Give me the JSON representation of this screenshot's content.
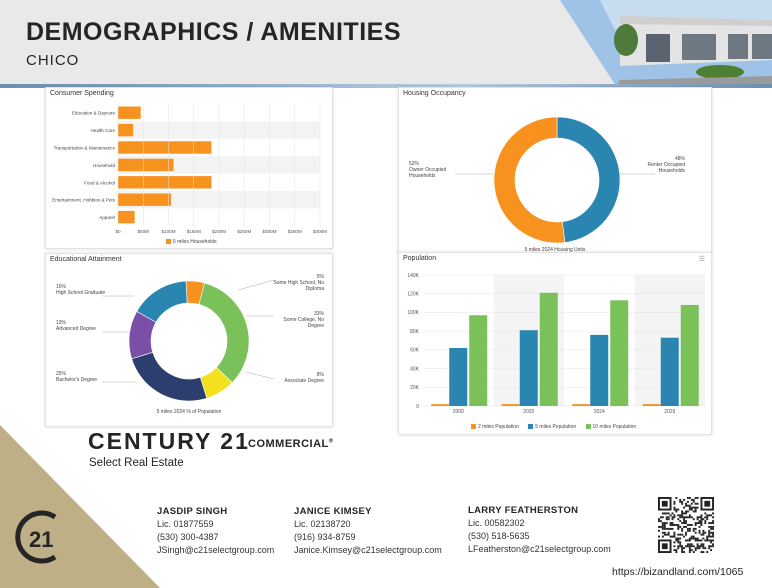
{
  "header": {
    "title": "DEMOGRAPHICS / AMENITIES",
    "subtitle": "CHICO"
  },
  "colors": {
    "orange": "#f7921e",
    "blue": "#2a86b0",
    "green": "#7bc15a",
    "purple": "#7b4ea7",
    "navy": "#2c3e6e",
    "yellow": "#f3e01f",
    "gold": "#beaf87"
  },
  "consumer": {
    "title": "Consumer Spending",
    "chart_data": {
      "type": "bar",
      "orientation": "horizontal",
      "categories": [
        "Education & Daycare",
        "Health Care",
        "Transportation & Maintenance",
        "Household",
        "Food & Alcohol",
        "Entertainment, Hobbies & Pets",
        "Apparel"
      ],
      "values": [
        45,
        30,
        185,
        110,
        185,
        105,
        33
      ],
      "xticks": [
        "$0",
        "$50M",
        "$100M",
        "$150M",
        "$200M",
        "$250M",
        "$300M",
        "$350M",
        "$400M"
      ],
      "xlim": [
        0,
        400
      ],
      "legend": "5 miles Households"
    }
  },
  "housing": {
    "title": "Housing Occupancy",
    "chart_data": {
      "type": "pie",
      "donut": true,
      "labels": [
        "Owner Occupied Households",
        "Renter Occupied Households"
      ],
      "values": [
        52,
        48
      ],
      "label_pct": [
        "52%",
        "48%"
      ],
      "footer": "5 miles 2024 Housing Units"
    }
  },
  "education": {
    "title": "Educational Attainment",
    "chart_data": {
      "type": "pie",
      "donut": true,
      "labels": [
        "Some High School, No Diploma",
        "Some College, No Degree",
        "Associate Degree",
        "Bachelor's Degree",
        "Advanced Degree",
        "High School Graduate"
      ],
      "values": [
        5,
        33,
        8,
        25,
        13,
        16
      ],
      "label_pct": [
        "5%",
        "33%",
        "8%",
        "25%",
        "13%",
        "16%"
      ],
      "footer": "5 miles 2024 % of Population"
    }
  },
  "population": {
    "title": "Population",
    "chart_data": {
      "type": "bar",
      "categories": [
        "2000",
        "2020",
        "2024",
        "2029"
      ],
      "series": [
        {
          "name": "2 miles Population",
          "values": [
            2000,
            2000,
            2000,
            2000
          ]
        },
        {
          "name": "5 miles Population",
          "values": [
            62000,
            81000,
            76000,
            73000
          ]
        },
        {
          "name": "10 miles Population",
          "values": [
            97000,
            121000,
            113000,
            108000
          ]
        }
      ],
      "yticks": [
        "0",
        "20K",
        "40K",
        "60K",
        "80K",
        "100K",
        "120K",
        "140K"
      ],
      "ylim": [
        0,
        140000
      ]
    }
  },
  "brand": {
    "name": "CENTURY 21",
    "commercial": "COMMERCIAL",
    "reg": "®",
    "office": "Select Real Estate"
  },
  "agents": [
    {
      "name": "JASDIP SINGH",
      "lic": "Lic. 01877559",
      "phone": "(530) 300-4387",
      "email": "JSingh@c21selectgroup.com"
    },
    {
      "name": "JANICE KIMSEY",
      "lic": "Lic. 02138720",
      "phone": "(916) 934-8759",
      "email": "Janice.Kimsey@c21selectgroup.com"
    },
    {
      "name": "LARRY FEATHERSTON",
      "lic": "Lic. 00582302",
      "phone": "(530) 518-5635",
      "email": "LFeatherston@c21selectgroup.com"
    }
  ],
  "footer_url": "https://bizandland.com/1065"
}
